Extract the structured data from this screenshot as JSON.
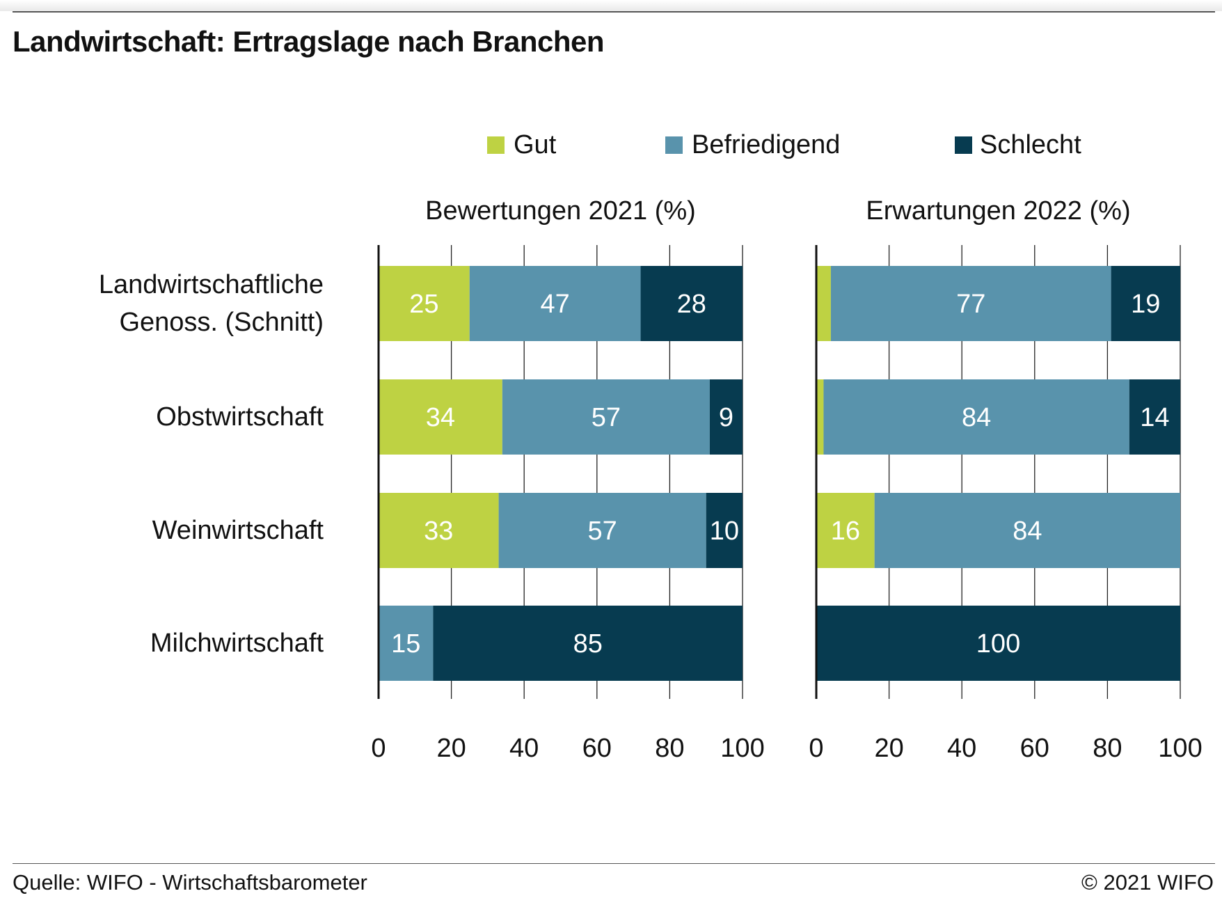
{
  "title": "Landwirtschaft: Ertragslage nach Branchen",
  "source": "Quelle: WIFO - Wirtschaftsbarometer",
  "copyright": "© 2021 WIFO",
  "chart_data": {
    "type": "bar",
    "orientation": "horizontal",
    "stacked": true,
    "categories": [
      "Landwirtschaftliche Genoss. (Schnitt)",
      "Obstwirtschaft",
      "Weinwirtschaft",
      "Milchwirtschaft"
    ],
    "category_lines": [
      [
        "Landwirtschaftliche",
        "Genoss. (Schnitt)"
      ],
      [
        "Obstwirtschaft"
      ],
      [
        "Weinwirtschaft"
      ],
      [
        "Milchwirtschaft"
      ]
    ],
    "legend": [
      {
        "name": "Gut",
        "color": "#bed243"
      },
      {
        "name": "Befriedigend",
        "color": "#5993ac"
      },
      {
        "name": "Schlecht",
        "color": "#073b50"
      }
    ],
    "legend_position": "top",
    "xlim": [
      0,
      100
    ],
    "x_ticks": [
      "0",
      "20",
      "40",
      "60",
      "80",
      "100"
    ],
    "grid": true,
    "panels": [
      {
        "title": "Bewertungen 2021 (%)",
        "series": [
          {
            "name": "Gut",
            "values": [
              25,
              34,
              33,
              0
            ]
          },
          {
            "name": "Befriedigend",
            "values": [
              47,
              57,
              57,
              15
            ]
          },
          {
            "name": "Schlecht",
            "values": [
              28,
              9,
              10,
              85
            ]
          }
        ]
      },
      {
        "title": "Erwartungen 2022 (%)",
        "series": [
          {
            "name": "Gut",
            "values": [
              4,
              2,
              16,
              0
            ]
          },
          {
            "name": "Befriedigend",
            "values": [
              77,
              84,
              84,
              0
            ]
          },
          {
            "name": "Schlecht",
            "values": [
              19,
              14,
              0,
              100
            ]
          }
        ]
      }
    ],
    "label_threshold": 5
  }
}
